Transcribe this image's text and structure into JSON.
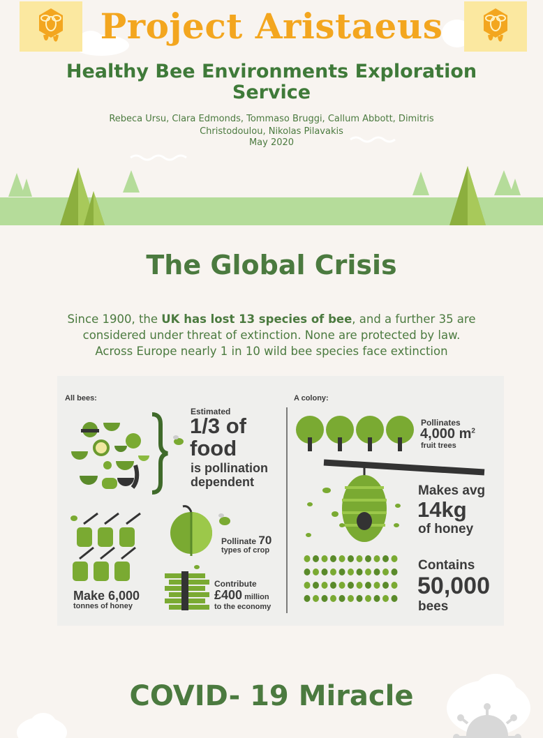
{
  "header": {
    "title": "Project Aristaeus",
    "subtitle": "Healthy Bee Environments Exploration Service",
    "authors": "Rebeca Ursu, Clara Edmonds, Tommaso Bruggi, Callum Abbott, Dimitris Christodoulou, Nikolas Pilavakis",
    "date": "May 2020",
    "logo_icon": "bee-honey-icon"
  },
  "crisis": {
    "title": "The Global Crisis",
    "text_before": "Since 1900, the ",
    "text_bold": "UK has lost 13 species of bee",
    "text_after": ", and a further 35 are considered under threat of extinction. None are protected by law. Across Europe nearly 1 in 10 wild bee species face extinction"
  },
  "infographic": {
    "all_bees": {
      "heading": "All bees:",
      "estimated": "Estimated",
      "fraction": "1/3 of",
      "food": "food",
      "pollination_line1": "is pollination",
      "pollination_line2": "dependent",
      "honey_make": "Make 6,000",
      "honey_units": "tonnes of honey",
      "pollinate_prefix": "Pollinate",
      "pollinate_number": "70",
      "pollinate_suffix": "types of crop",
      "contribute": "Contribute",
      "economy_amount": "£400",
      "economy_million": "million",
      "economy_suffix": "to the economy"
    },
    "colony": {
      "heading": "A colony:",
      "pollinates": "Pollinates",
      "area_number": "4,000 m",
      "area_exp": "2",
      "fruit_trees": "fruit trees",
      "makes_avg": "Makes avg",
      "honey_kg": "14kg",
      "of_honey": "of honey",
      "contains": "Contains",
      "bee_count": "50,000",
      "bees": "bees"
    }
  },
  "covid": {
    "title": "COVID- 19 Miracle"
  },
  "colors": {
    "orange": "#f3a61f",
    "green_dark": "#4b7a3f",
    "green_light": "#b5dc9a",
    "green_mid": "#7aa535"
  }
}
